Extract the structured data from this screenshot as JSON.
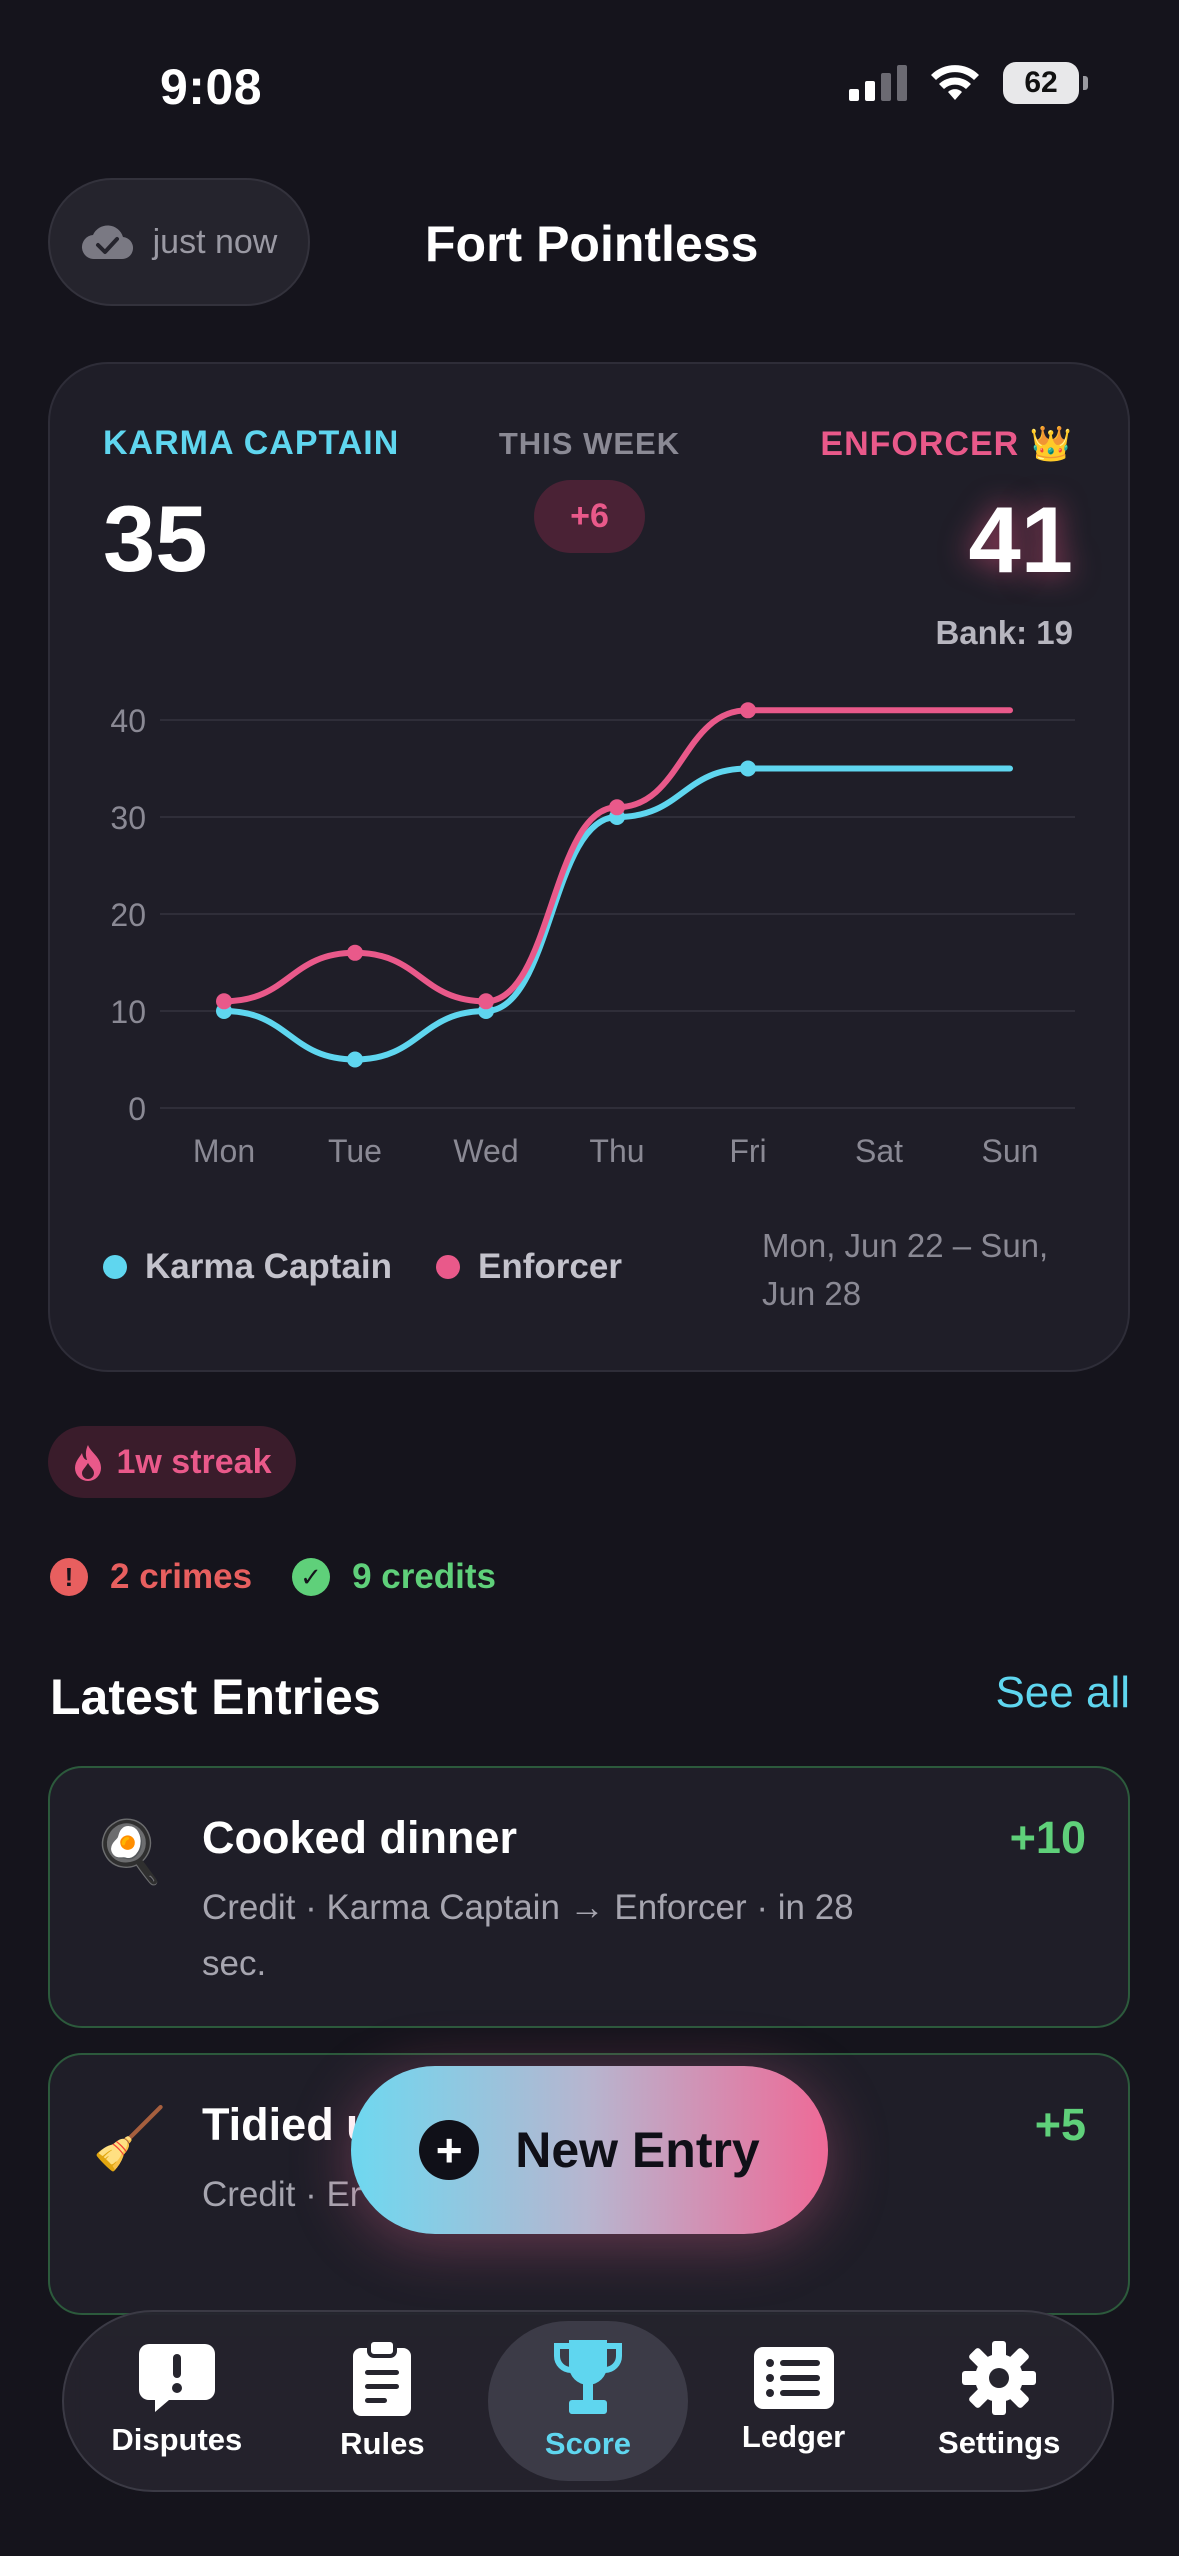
{
  "status_bar": {
    "time": "9:08",
    "battery": "62"
  },
  "header": {
    "sync_label": "just now",
    "title": "Fort Pointless"
  },
  "scoreboard": {
    "left_player": {
      "name": "KARMA CAPTAIN",
      "score": "35"
    },
    "week": {
      "label": "THIS WEEK",
      "delta": "+6"
    },
    "right_player": {
      "name": "ENFORCER",
      "crown": "👑",
      "score": "41",
      "bank": "Bank: 19"
    }
  },
  "chart_data": {
    "type": "line",
    "x": [
      "Mon",
      "Tue",
      "Wed",
      "Thu",
      "Fri",
      "Sat",
      "Sun"
    ],
    "ylim": [
      0,
      40
    ],
    "yticks": [
      "0",
      "10",
      "20",
      "30",
      "40"
    ],
    "series": [
      {
        "name": "Karma Captain",
        "color": "#5fd6ef",
        "values": [
          10,
          5,
          10,
          30,
          35,
          35,
          35
        ]
      },
      {
        "name": "Enforcer",
        "color": "#e9598a",
        "values": [
          11,
          16,
          11,
          31,
          41,
          41,
          41
        ]
      }
    ],
    "grid": true,
    "legend": "bottom-left",
    "date_range": "Mon, Jun 22 – Sun, Jun 28"
  },
  "streak": "1w streak",
  "stats": {
    "crimes": "2 crimes",
    "credits": "9 credits"
  },
  "latest": {
    "title": "Latest Entries",
    "see_all": "See all",
    "entries": [
      {
        "emoji": "🍳",
        "title": "Cooked dinner",
        "sub": "Credit · Karma Captain → Enforcer · in 28 sec.",
        "points": "+10"
      },
      {
        "emoji": "🧹",
        "title": "Tidied u",
        "sub": "Credit · Er 26 sec. ago",
        "points": "+5"
      }
    ]
  },
  "fab": {
    "label": "New Entry"
  },
  "tabs": [
    {
      "label": "Disputes",
      "icon": "exclamation-bubble-icon"
    },
    {
      "label": "Rules",
      "icon": "clipboard-icon"
    },
    {
      "label": "Score",
      "icon": "trophy-icon"
    },
    {
      "label": "Ledger",
      "icon": "list-icon"
    },
    {
      "label": "Settings",
      "icon": "gear-icon"
    }
  ],
  "colors": {
    "cyan": "#5fd6ef",
    "pink": "#e9598a",
    "green": "#5fd07a",
    "red": "#e85f5f"
  }
}
